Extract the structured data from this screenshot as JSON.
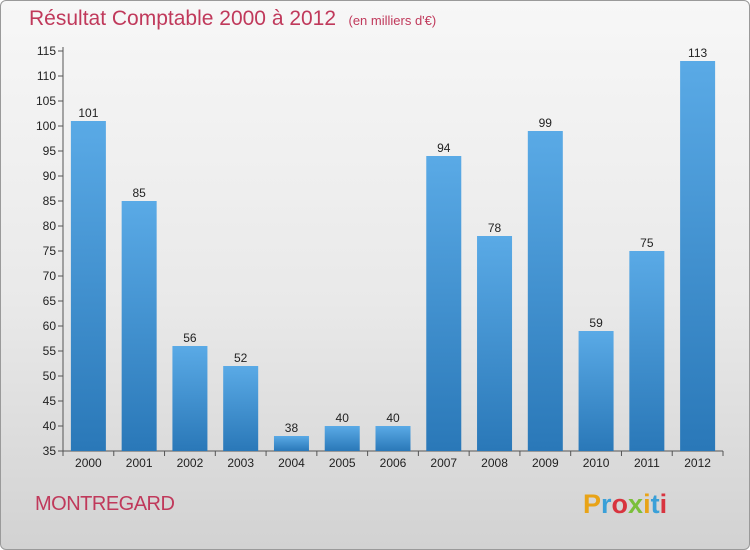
{
  "header": {
    "title": "Résultat Comptable 2000 à 2012",
    "subtitle": "(en milliers d'€)"
  },
  "footer": {
    "commune": "MONTREGARD",
    "logo_text": "Proxiti",
    "logo_colors": [
      "#e8a317",
      "#3aa0d8",
      "#d8343f",
      "#7bbf3a",
      "#e8a317",
      "#3aa0d8",
      "#d8343f"
    ]
  },
  "colors": {
    "bar_top": "#5aaae6",
    "bar_bottom": "#2a78b8",
    "title": "#c0395b"
  },
  "chart_data": {
    "type": "bar",
    "title": "Résultat Comptable 2000 à 2012",
    "categories": [
      "2000",
      "2001",
      "2002",
      "2003",
      "2004",
      "2005",
      "2006",
      "2007",
      "2008",
      "2009",
      "2010",
      "2011",
      "2012"
    ],
    "values": [
      101,
      85,
      56,
      52,
      38,
      40,
      40,
      94,
      78,
      99,
      59,
      75,
      113
    ],
    "ylim": [
      35,
      115
    ],
    "yticks": [
      35,
      40,
      45,
      50,
      55,
      60,
      65,
      70,
      75,
      80,
      85,
      90,
      95,
      100,
      105,
      110,
      115
    ],
    "grid": false,
    "legend": "none"
  }
}
